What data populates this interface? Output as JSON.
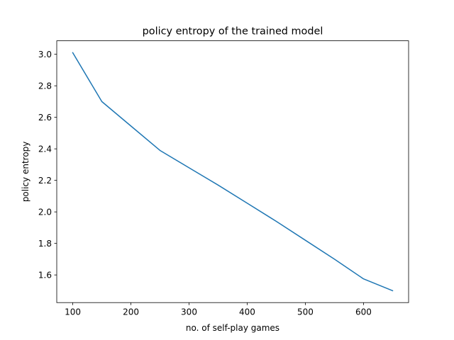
{
  "chart_data": {
    "type": "line",
    "title": "policy entropy of the trained model",
    "xlabel": "no. of self-play games",
    "ylabel": "policy entropy",
    "x": [
      100,
      150,
      200,
      250,
      300,
      350,
      400,
      450,
      500,
      550,
      600,
      650
    ],
    "series": [
      {
        "name": "policy entropy",
        "color": "#1f77b4",
        "values": [
          3.01,
          2.7,
          2.545,
          2.39,
          2.28,
          2.17,
          2.055,
          1.94,
          1.82,
          1.7,
          1.575,
          1.5
        ]
      }
    ],
    "xlim": [
      72.5,
      677.5
    ],
    "ylim": [
      1.4245,
      3.0855
    ],
    "xticks": [
      100,
      200,
      300,
      400,
      500,
      600
    ],
    "xtick_labels": [
      "100",
      "200",
      "300",
      "400",
      "500",
      "600"
    ],
    "yticks": [
      1.6,
      1.8,
      2.0,
      2.2,
      2.4,
      2.6,
      2.8,
      3.0
    ],
    "ytick_labels": [
      "1.6",
      "1.8",
      "2.0",
      "2.2",
      "2.4",
      "2.6",
      "2.8",
      "3.0"
    ],
    "grid": false,
    "legend": "none"
  }
}
